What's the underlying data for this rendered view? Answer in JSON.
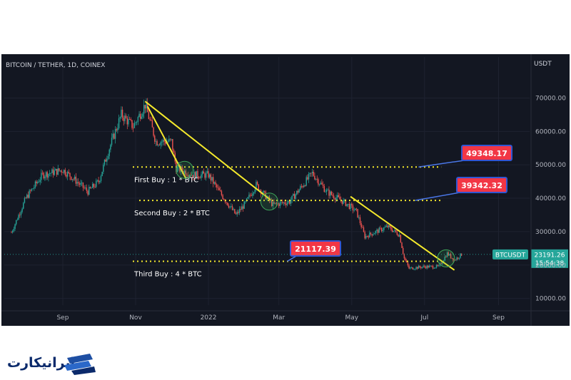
{
  "chart_data": {
    "type": "candlestick",
    "title": "BITCOIN / TETHER, 1D, COINEX",
    "currency_label": "USDT",
    "ylim": [
      8000,
      78000
    ],
    "y_ticks": [
      {
        "value": 10000,
        "label": "10000.00"
      },
      {
        "value": 20000,
        "label": "20000.00"
      },
      {
        "value": 30000,
        "label": "30000.00"
      },
      {
        "value": 40000,
        "label": "40000.00"
      },
      {
        "value": 50000,
        "label": "50000.00"
      },
      {
        "value": 60000,
        "label": "60000.00"
      },
      {
        "value": 70000,
        "label": "70000.00"
      }
    ],
    "x_ticks": [
      {
        "date": "2021-09-01",
        "label": "Sep"
      },
      {
        "date": "2021-11-01",
        "label": "Nov"
      },
      {
        "date": "2022-01-01",
        "label": "2022"
      },
      {
        "date": "2022-03-01",
        "label": "Mar"
      },
      {
        "date": "2022-05-01",
        "label": "May"
      },
      {
        "date": "2022-07-01",
        "label": "Jul"
      },
      {
        "date": "2022-09-01",
        "label": "Sep"
      }
    ],
    "price_path": [
      [
        "2021-07-20",
        29800
      ],
      [
        "2021-08-01",
        40000
      ],
      [
        "2021-08-15",
        47000
      ],
      [
        "2021-09-01",
        48500
      ],
      [
        "2021-09-08",
        46500
      ],
      [
        "2021-09-22",
        42000
      ],
      [
        "2021-10-01",
        45000
      ],
      [
        "2021-10-10",
        55000
      ],
      [
        "2021-10-20",
        65000
      ],
      [
        "2021-10-30",
        61500
      ],
      [
        "2021-11-09",
        68000
      ],
      [
        "2021-11-18",
        57000
      ],
      [
        "2021-12-01",
        57000
      ],
      [
        "2021-12-05",
        49000
      ],
      [
        "2021-12-20",
        47000
      ],
      [
        "2022-01-01",
        47000
      ],
      [
        "2022-01-10",
        42000
      ],
      [
        "2022-01-24",
        35000
      ],
      [
        "2022-02-01",
        38500
      ],
      [
        "2022-02-10",
        44000
      ],
      [
        "2022-02-24",
        38000
      ],
      [
        "2022-03-10",
        39000
      ],
      [
        "2022-03-29",
        47500
      ],
      [
        "2022-04-10",
        42000
      ],
      [
        "2022-04-26",
        38500
      ],
      [
        "2022-05-05",
        36000
      ],
      [
        "2022-05-12",
        28500
      ],
      [
        "2022-05-31",
        31500
      ],
      [
        "2022-06-10",
        29000
      ],
      [
        "2022-06-14",
        22000
      ],
      [
        "2022-06-18",
        19000
      ],
      [
        "2022-06-30",
        19500
      ],
      [
        "2022-07-13",
        19500
      ],
      [
        "2022-07-20",
        23500
      ],
      [
        "2022-07-26",
        21500
      ],
      [
        "2022-08-01",
        23200
      ]
    ],
    "levels": [
      {
        "value": 49348.17,
        "label": "49348.17",
        "caption": "First Buy : 1 * BTC"
      },
      {
        "value": 39342.32,
        "label": "39342.32",
        "caption": "Second Buy : 2 * BTC"
      },
      {
        "value": 21117.39,
        "label": "21117.39",
        "caption": "Third Buy : 4 * BTC"
      }
    ],
    "trendlines": [
      {
        "from": [
          "2021-11-09",
          69000
        ],
        "to": [
          "2022-02-22",
          39500
        ]
      },
      {
        "from": [
          "2021-11-11",
          67500
        ],
        "to": [
          "2021-12-13",
          46000
        ]
      },
      {
        "from": [
          "2022-04-30",
          40500
        ],
        "to": [
          "2022-07-26",
          18500
        ]
      }
    ],
    "markers": [
      {
        "date": "2021-12-12",
        "value": 48500
      },
      {
        "date": "2022-02-21",
        "value": 39000
      },
      {
        "date": "2022-07-19",
        "value": 22000
      }
    ],
    "last_price": {
      "symbol": "BTCUSDT",
      "value": 23191.26,
      "label": "23191.26",
      "countdown": "15:54:38"
    }
  },
  "colors": {
    "up": "#26a69a",
    "down": "#ef5350",
    "level_line": "#f5ea2c",
    "callout": "#f23645",
    "callout_border": "#3056d3",
    "marker": "#3ea55a"
  },
  "brand": {
    "name": "ایرانیکارت"
  }
}
